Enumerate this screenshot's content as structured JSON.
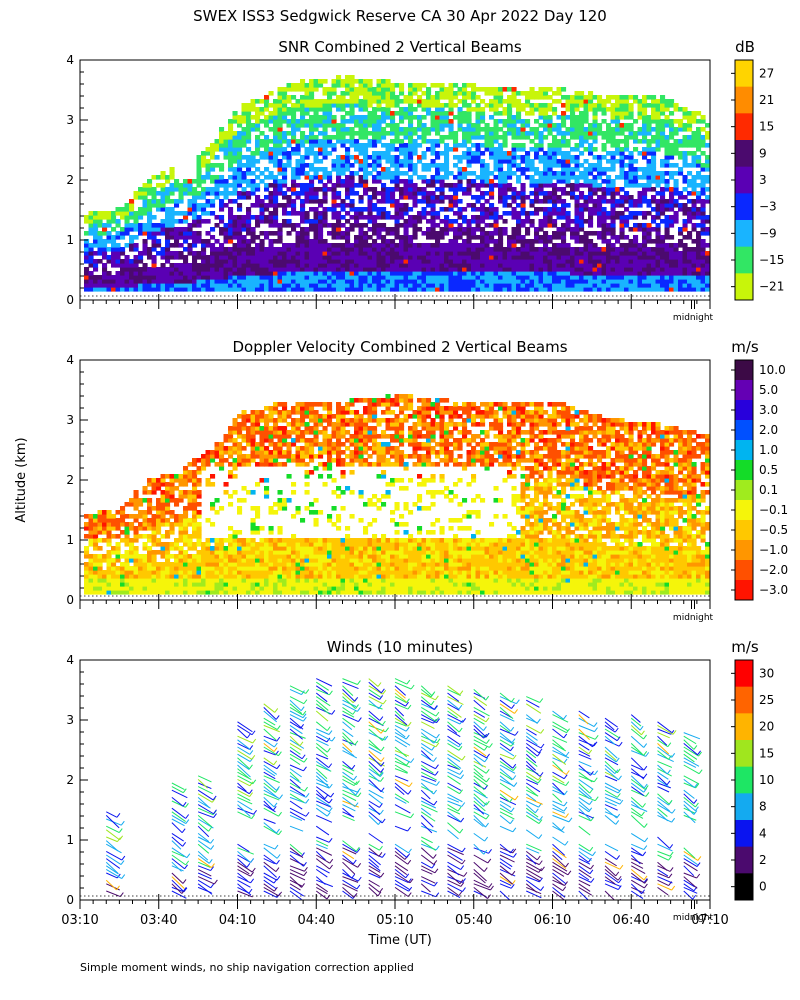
{
  "title": "SWEX ISS3 Sedgwick Reserve CA  30 Apr 2022 Day 120",
  "shared_ylabel": "Altitude (km)",
  "xlabel": "Time (UT)",
  "footnote": "Simple moment winds, no ship navigation correction applied",
  "midnight_label": "midnight",
  "x_ticks": [
    "03:10",
    "03:40",
    "04:10",
    "04:40",
    "05:10",
    "05:40",
    "06:10",
    "06:40",
    "07:10"
  ],
  "y_ticks": [
    "0",
    "1",
    "2",
    "3",
    "4"
  ],
  "chart_data": [
    {
      "type": "heatmap",
      "title": "SNR Combined 2 Vertical Beams",
      "units": "dB",
      "xlabel": "Time (UT)",
      "ylabel": "Altitude (km)",
      "x_range": [
        "03:10",
        "07:10"
      ],
      "ylim": [
        0,
        4
      ],
      "colorbar": {
        "labels": [
          "27",
          "21",
          "15",
          "9",
          "3",
          "−3",
          "−9",
          "−15",
          "−21"
        ],
        "colors": [
          "#ffd400",
          "#ff8c00",
          "#ff2a00",
          "#4b0a6e",
          "#5a00b4",
          "#0a28ff",
          "#19b4ff",
          "#32e664",
          "#c8f50a"
        ]
      },
      "signal_top_km": [
        [
          "03:10",
          1.4
        ],
        [
          "03:25",
          1.5
        ],
        [
          "03:35",
          2.0
        ],
        [
          "03:45",
          2.2
        ],
        [
          "03:55",
          2.4
        ],
        [
          "04:10",
          3.2
        ],
        [
          "04:30",
          3.6
        ],
        [
          "04:50",
          3.7
        ],
        [
          "05:10",
          3.6
        ],
        [
          "05:30",
          3.6
        ],
        [
          "05:50",
          3.5
        ],
        [
          "06:10",
          3.5
        ],
        [
          "06:30",
          3.4
        ],
        [
          "06:50",
          3.4
        ],
        [
          "07:10",
          3.0
        ]
      ]
    },
    {
      "type": "heatmap",
      "title": "Doppler Velocity Combined 2 Vertical Beams",
      "units": "m/s",
      "xlabel": "Time (UT)",
      "ylabel": "Altitude (km)",
      "x_range": [
        "03:10",
        "07:10"
      ],
      "ylim": [
        0,
        4
      ],
      "colorbar": {
        "labels": [
          "10.0",
          "5.0",
          "3.0",
          "2.0",
          "1.0",
          "0.5",
          "0.1",
          "−0.1",
          "−0.5",
          "−1.0",
          "−2.0",
          "−3.0"
        ],
        "colors": [
          "#3c0a46",
          "#6400b4",
          "#2800dc",
          "#0050ff",
          "#00b4f0",
          "#14dc28",
          "#a0eb1e",
          "#f5f50a",
          "#ffc800",
          "#ff9600",
          "#ff5000",
          "#ff1400"
        ]
      },
      "signal_top_km": [
        [
          "03:10",
          1.4
        ],
        [
          "03:25",
          1.5
        ],
        [
          "03:35",
          2.0
        ],
        [
          "03:45",
          2.1
        ],
        [
          "04:00",
          2.5
        ],
        [
          "04:10",
          3.1
        ],
        [
          "04:30",
          3.3
        ],
        [
          "04:50",
          3.3
        ],
        [
          "05:10",
          3.4
        ],
        [
          "05:30",
          3.3
        ],
        [
          "05:50",
          3.3
        ],
        [
          "06:10",
          3.3
        ],
        [
          "06:30",
          3.0
        ],
        [
          "06:50",
          2.9
        ],
        [
          "07:10",
          2.7
        ]
      ]
    },
    {
      "type": "scatter",
      "title": "Winds (10 minutes)",
      "units": "m/s",
      "xlabel": "Time (UT)",
      "ylabel": "Altitude (km)",
      "x_range": [
        "03:10",
        "07:10"
      ],
      "ylim": [
        0,
        4
      ],
      "colorbar": {
        "labels": [
          "30",
          "25",
          "20",
          "15",
          "10",
          "8",
          "4",
          "2",
          "0"
        ],
        "colors": [
          "#ff0000",
          "#ff6400",
          "#ffb400",
          "#a0e61e",
          "#1ee664",
          "#14aaf0",
          "#0a14f0",
          "#4b0a6e",
          "#000000"
        ]
      },
      "profile_times": [
        "03:20",
        "03:45",
        "03:55",
        "04:10",
        "04:20",
        "04:30",
        "04:40",
        "04:50",
        "05:00",
        "05:10",
        "05:20",
        "05:30",
        "05:40",
        "05:50",
        "06:00",
        "06:10",
        "06:20",
        "06:30",
        "06:40",
        "06:50",
        "07:00"
      ],
      "profile_top_km": [
        1.5,
        2.0,
        2.1,
        3.0,
        3.3,
        3.6,
        3.7,
        3.7,
        3.7,
        3.7,
        3.6,
        3.6,
        3.6,
        3.5,
        3.4,
        3.3,
        3.2,
        3.1,
        3.1,
        3.0,
        2.8
      ]
    }
  ]
}
